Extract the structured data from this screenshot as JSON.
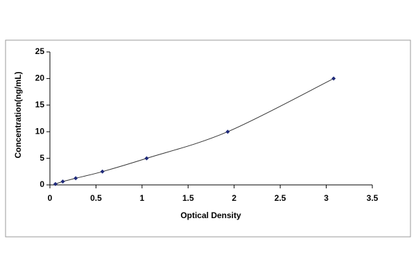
{
  "chart_data": {
    "type": "scatter",
    "x_label": "Optical Density",
    "y_label": "Concentration(ng/mL)",
    "x": [
      0.06,
      0.14,
      0.28,
      0.57,
      1.05,
      1.93,
      3.08
    ],
    "values": [
      0.16,
      0.63,
      1.25,
      2.5,
      5,
      10,
      20
    ],
    "color": "#1f2a7a",
    "curve": true,
    "xlim": [
      0,
      3.5
    ],
    "xticks": [
      0,
      0.5,
      1,
      1.5,
      2,
      2.5,
      3,
      3.5
    ],
    "ylim": [
      0,
      25
    ],
    "yticks": [
      0,
      5,
      10,
      15,
      20,
      25
    ]
  }
}
